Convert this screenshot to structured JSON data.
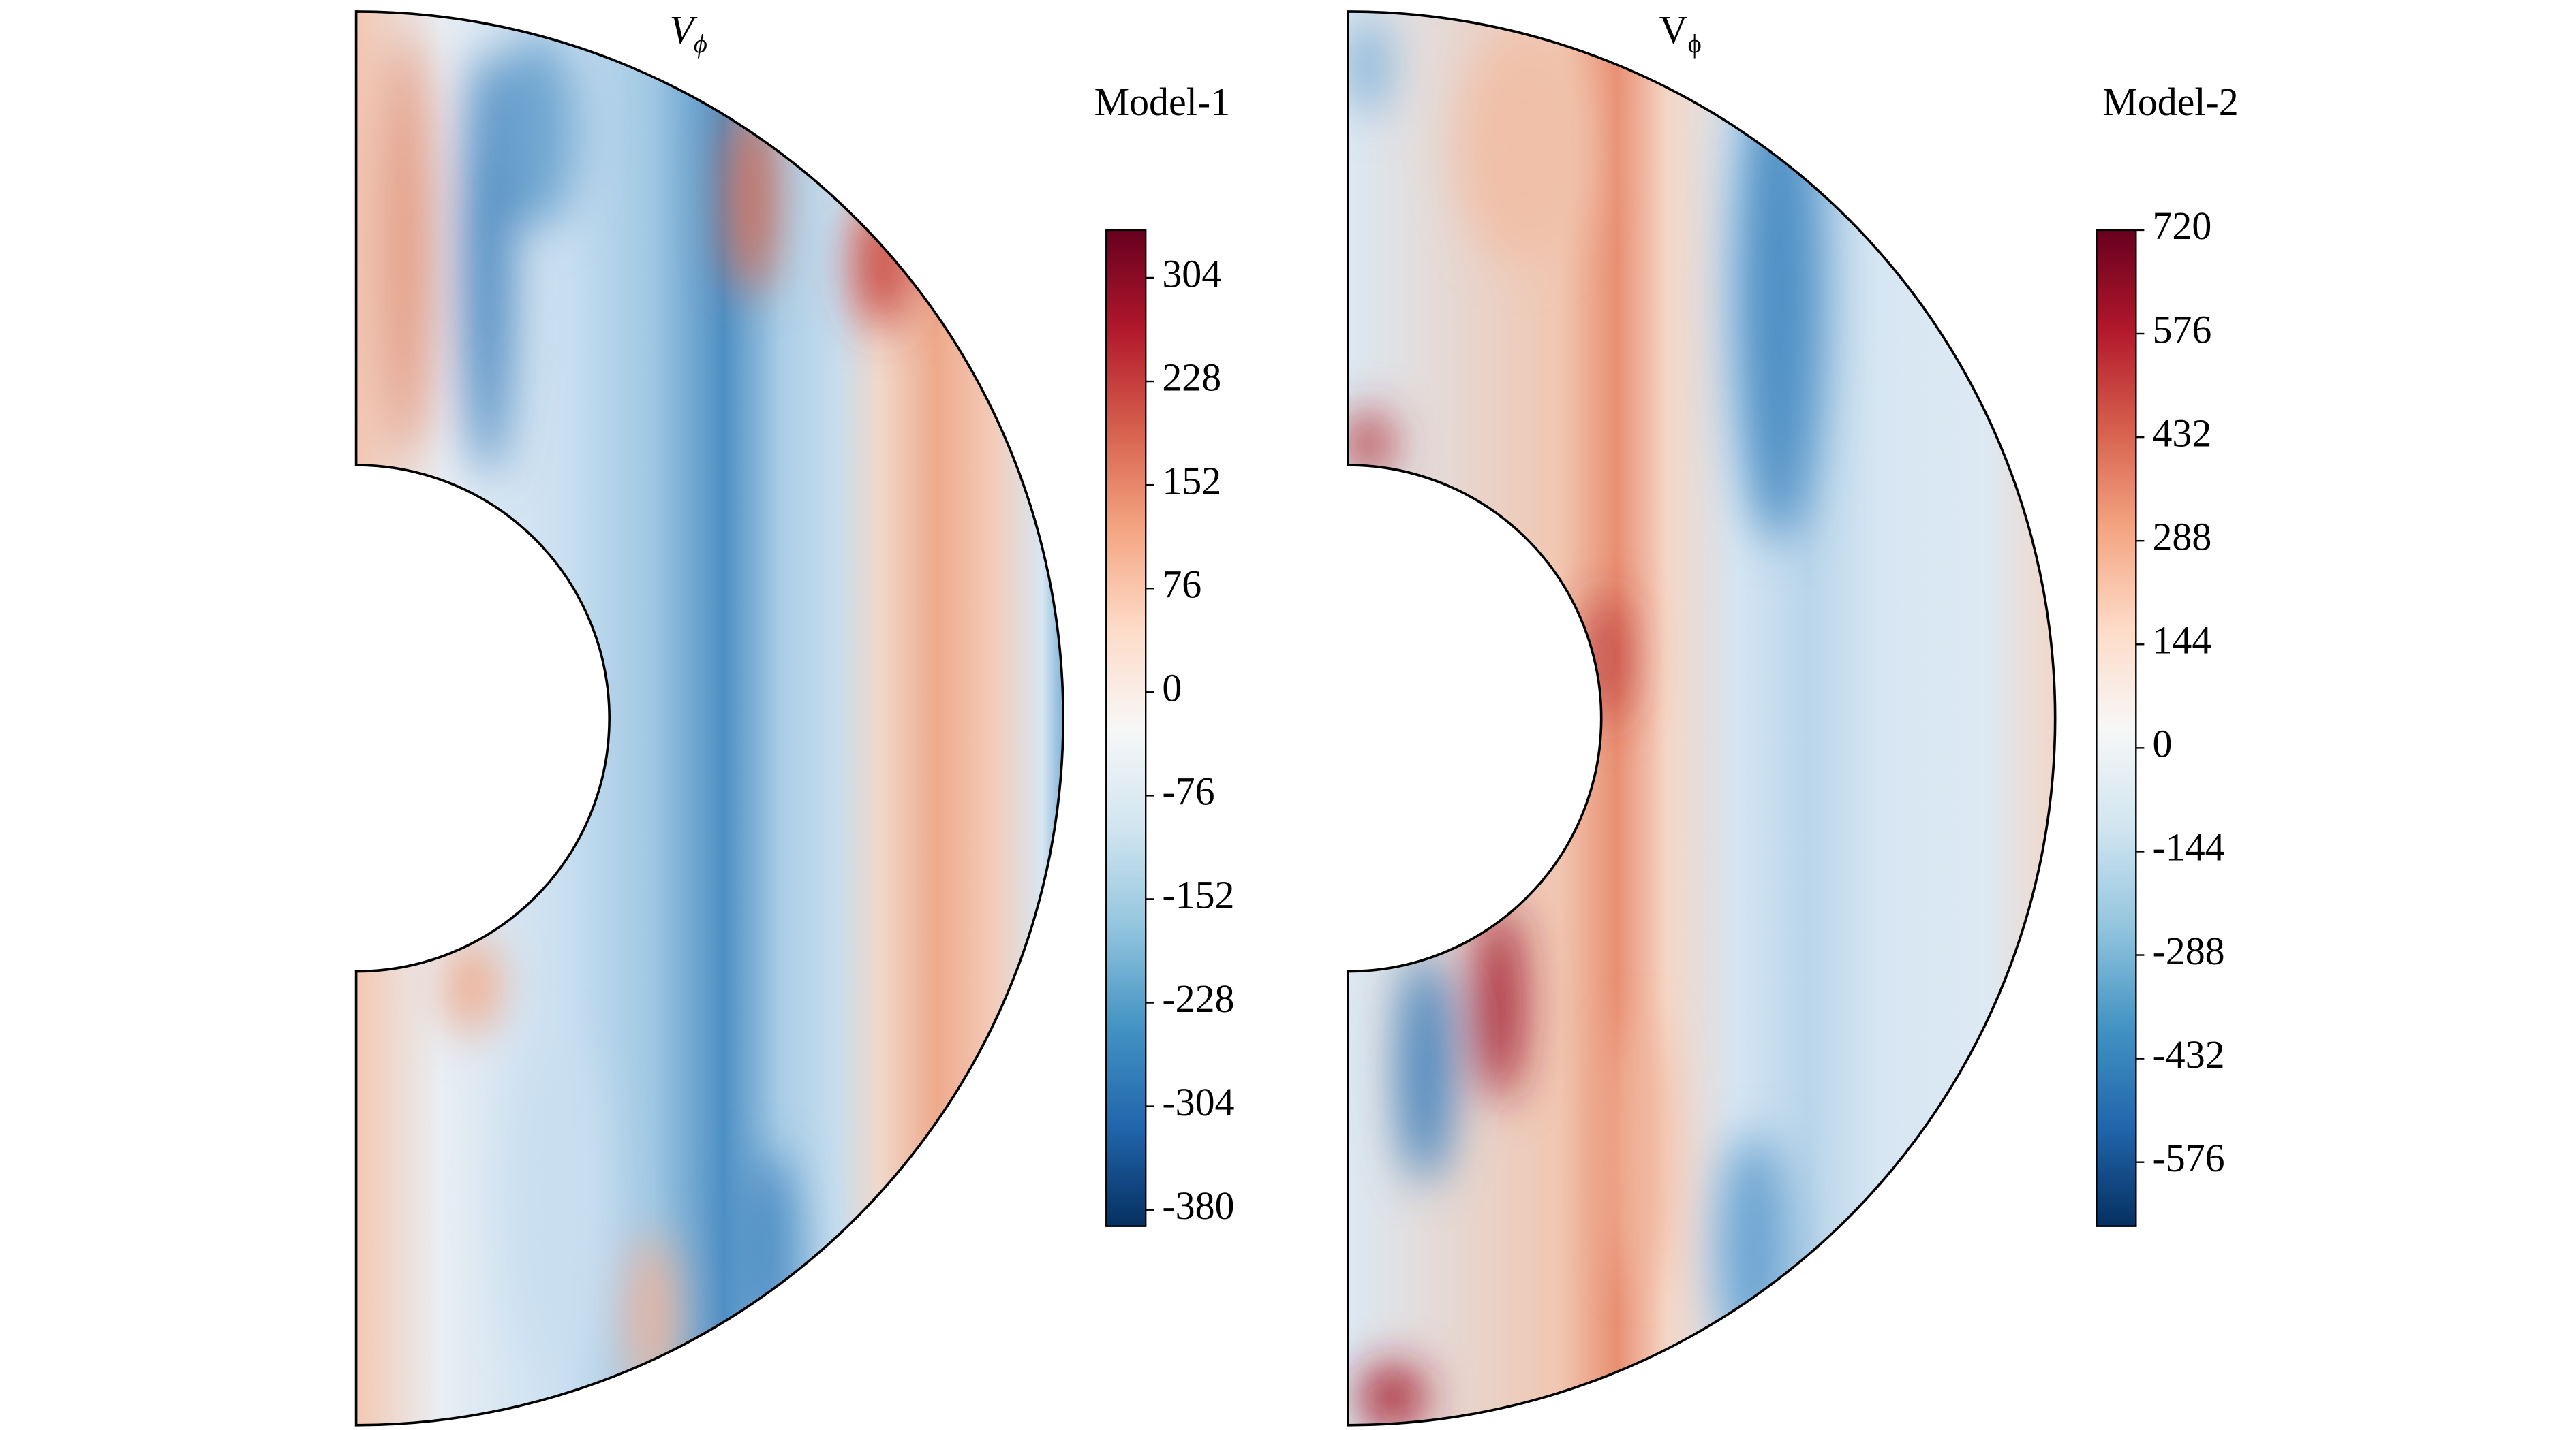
{
  "chart_data": [
    {
      "type": "meridional",
      "title": "V",
      "title_subscript": "ϕ",
      "title_italic": true,
      "label": "Model-1",
      "cmap": "RdBu_r",
      "clim": [
        -392,
        339
      ],
      "cticks": [
        304,
        228,
        152,
        76,
        0,
        -76,
        -152,
        -228,
        -304,
        -380
      ]
    },
    {
      "type": "meridional",
      "title": "V",
      "title_subscript": "ϕ",
      "title_italic": false,
      "label": "Model-2",
      "cmap": "RdBu_r",
      "clim": [
        -665,
        720
      ],
      "cticks": [
        720,
        576,
        432,
        288,
        144,
        0,
        -144,
        -288,
        -432,
        -576
      ]
    }
  ]
}
